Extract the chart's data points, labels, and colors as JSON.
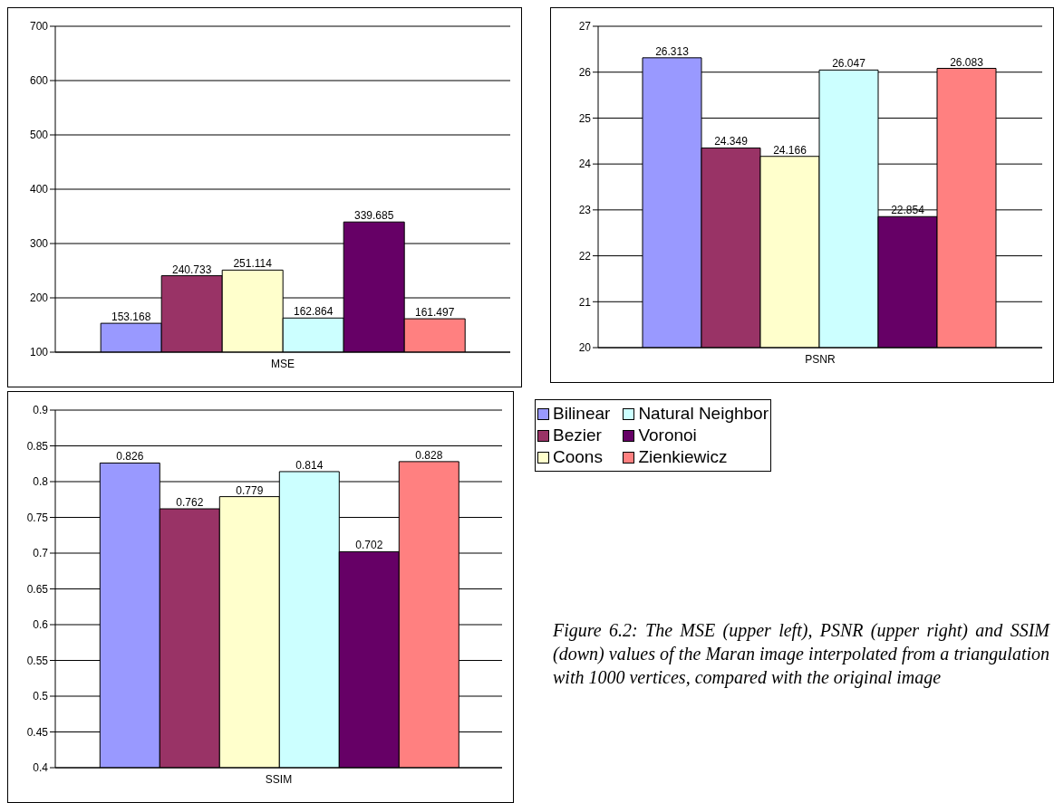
{
  "chart_data": [
    {
      "type": "bar",
      "categories": [
        "MSE"
      ],
      "series": [
        {
          "color": "#9999ff",
          "values": [
            153.168
          ]
        },
        {
          "color": "#993366",
          "values": [
            240.733
          ]
        },
        {
          "color": "#ffffcc",
          "values": [
            251.114
          ]
        },
        {
          "color": "#ccffff",
          "values": [
            162.864
          ]
        },
        {
          "color": "#660066",
          "values": [
            339.685
          ]
        },
        {
          "color": "#ff8080",
          "values": [
            161.497
          ]
        }
      ],
      "ylim": [
        100,
        700
      ],
      "yticks": [
        100,
        200,
        300,
        400,
        500,
        600,
        700
      ],
      "grid": "y",
      "data_labels": true
    },
    {
      "type": "bar",
      "categories": [
        "PSNR"
      ],
      "series": [
        {
          "color": "#9999ff",
          "values": [
            26.313
          ]
        },
        {
          "color": "#993366",
          "values": [
            24.349
          ]
        },
        {
          "color": "#ffffcc",
          "values": [
            24.166
          ]
        },
        {
          "color": "#ccffff",
          "values": [
            26.047
          ]
        },
        {
          "color": "#660066",
          "values": [
            22.854
          ]
        },
        {
          "color": "#ff8080",
          "values": [
            26.083
          ]
        }
      ],
      "ylim": [
        20,
        27
      ],
      "yticks": [
        20,
        21,
        22,
        23,
        24,
        25,
        26,
        27
      ],
      "grid": "y",
      "data_labels": true
    },
    {
      "type": "bar",
      "categories": [
        "SSIM"
      ],
      "series": [
        {
          "name": "Bilinear",
          "color": "#9999ff",
          "values": [
            0.826
          ]
        },
        {
          "name": "Bezier",
          "color": "#993366",
          "values": [
            0.762
          ]
        },
        {
          "name": "Coons",
          "color": "#ffffcc",
          "values": [
            0.779
          ]
        },
        {
          "name": "Natural Neighbor",
          "color": "#ccffff",
          "values": [
            0.814
          ]
        },
        {
          "name": "Voronoi",
          "color": "#660066",
          "values": [
            0.702
          ]
        },
        {
          "name": "Zienkiewicz",
          "color": "#ff8080",
          "values": [
            0.828
          ]
        }
      ],
      "ylim": [
        0.4,
        0.9
      ],
      "yticks": [
        0.4,
        0.45,
        0.5,
        0.55,
        0.6,
        0.65,
        0.7,
        0.75,
        0.8,
        0.85,
        0.9
      ],
      "grid": "y",
      "data_labels": true,
      "legend": "top right",
      "annotations": [
        "Figure 6.2: The MSE (upper left), PSNR (upper right) and SSIM (down) values of the Maran image interpolated from a triangulation with 1000 vertices, compared with the original image"
      ]
    }
  ]
}
